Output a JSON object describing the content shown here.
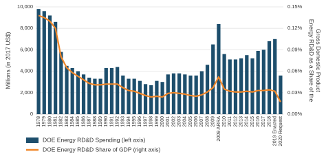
{
  "chart_data": {
    "type": "bar-line",
    "categories": [
      "1978",
      "1979",
      "1980",
      "1981",
      "1982",
      "1983",
      "1984",
      "1985",
      "1986",
      "1987",
      "1988",
      "1989",
      "1990",
      "1991",
      "1992",
      "1993",
      "1994",
      "1995",
      "1996",
      "1997",
      "1998",
      "1999",
      "2000",
      "2001",
      "2002",
      "2003",
      "2004",
      "2005",
      "2006",
      "2007",
      "2008",
      "2009",
      "2009 ARRA",
      "2010",
      "2011",
      "2012",
      "2013",
      "2014",
      "2015",
      "2016",
      "2017",
      "2018",
      "2019 Enacted",
      "2020 Request"
    ],
    "series": [
      {
        "name": "DOE Energy RD&D Spending (left axis)",
        "type": "bar",
        "color": "#1d4e6c",
        "values": [
          9800,
          9600,
          9200,
          8600,
          5800,
          4500,
          4300,
          4000,
          3700,
          3400,
          3300,
          3300,
          4300,
          4300,
          4400,
          3600,
          3300,
          3300,
          3100,
          2800,
          2700,
          3100,
          3000,
          3700,
          3800,
          3800,
          3700,
          3600,
          3600,
          4000,
          4600,
          6500,
          8400,
          5600,
          5100,
          5100,
          5200,
          5500,
          5200,
          5900,
          6000,
          6800,
          7000,
          3600
        ]
      },
      {
        "name": "DOE Energy RD&D Share of GDP (right axis)",
        "type": "line",
        "color": "#f0872a",
        "axis": "y2",
        "values": [
          0.138,
          0.135,
          0.13,
          0.12,
          0.08,
          0.065,
          0.058,
          0.053,
          0.048,
          0.043,
          0.041,
          0.041,
          0.042,
          0.042,
          0.042,
          0.037,
          0.033,
          0.032,
          0.029,
          0.026,
          0.024,
          0.025,
          0.024,
          0.029,
          0.03,
          0.029,
          0.028,
          0.026,
          0.025,
          0.027,
          0.031,
          0.037,
          0.052,
          0.035,
          0.032,
          0.031,
          0.031,
          0.032,
          0.031,
          0.033,
          0.033,
          0.034,
          0.032,
          0.017
        ]
      }
    ],
    "ylabel": "Millions (in 2017 US$)",
    "y2label": [
      "Energy RD&D as a Share of the",
      "Gross Domestic Product"
    ],
    "ylim": [
      0,
      10000
    ],
    "yticks": [
      0,
      {
        "value": 2000,
        "label": "2,000"
      },
      {
        "value": 4000,
        "label": "4,000"
      },
      {
        "value": 6000,
        "label": "6,000"
      },
      {
        "value": 8000,
        "label": "8,000"
      },
      {
        "value": 10000,
        "label": "10,000"
      }
    ],
    "y2lim": [
      0,
      0.15
    ],
    "y2ticks": [
      {
        "value": 0,
        "label": "0.00%"
      },
      {
        "value": 0.03,
        "label": "0.03%"
      },
      {
        "value": 0.06,
        "label": "0.06%"
      },
      {
        "value": 0.09,
        "label": "0.09%"
      },
      {
        "value": 0.12,
        "label": "0.12%"
      },
      {
        "value": 0.15,
        "label": "0.15%"
      }
    ],
    "grid": true
  }
}
